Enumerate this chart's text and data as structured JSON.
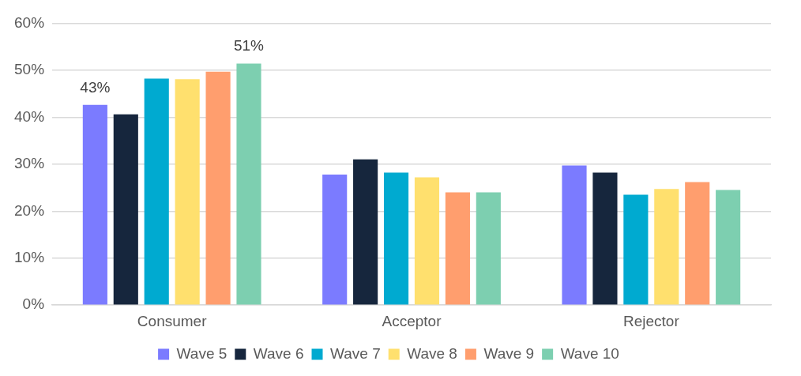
{
  "chart_data": {
    "type": "bar",
    "categories": [
      "Consumer",
      "Acceptor",
      "Rejector"
    ],
    "series": [
      {
        "name": "Wave 5",
        "color": "#7b7bff",
        "values": [
          42.6,
          27.8,
          29.7
        ],
        "value_labels": [
          "43%",
          null,
          null
        ]
      },
      {
        "name": "Wave 6",
        "color": "#16263d",
        "values": [
          40.6,
          31.0,
          28.2
        ]
      },
      {
        "name": "Wave 7",
        "color": "#00aad0",
        "values": [
          48.2,
          28.2,
          23.5
        ]
      },
      {
        "name": "Wave 8",
        "color": "#ffe06e",
        "values": [
          48.1,
          27.2,
          24.7
        ]
      },
      {
        "name": "Wave 9",
        "color": "#ff9e6e",
        "values": [
          49.7,
          24.0,
          26.2
        ]
      },
      {
        "name": "Wave 10",
        "color": "#7dcfb0",
        "values": [
          51.4,
          24.0,
          24.5
        ],
        "value_labels": [
          "51%",
          null,
          null
        ]
      }
    ],
    "ylim": [
      0,
      60
    ],
    "yticks": [
      {
        "value": 0,
        "label": "0%"
      },
      {
        "value": 10,
        "label": "10%"
      },
      {
        "value": 20,
        "label": "20%"
      },
      {
        "value": 30,
        "label": "30%"
      },
      {
        "value": 40,
        "label": "40%"
      },
      {
        "value": 50,
        "label": "50%"
      },
      {
        "value": 60,
        "label": "60%"
      }
    ],
    "grid": "y",
    "legend": "bottom"
  }
}
